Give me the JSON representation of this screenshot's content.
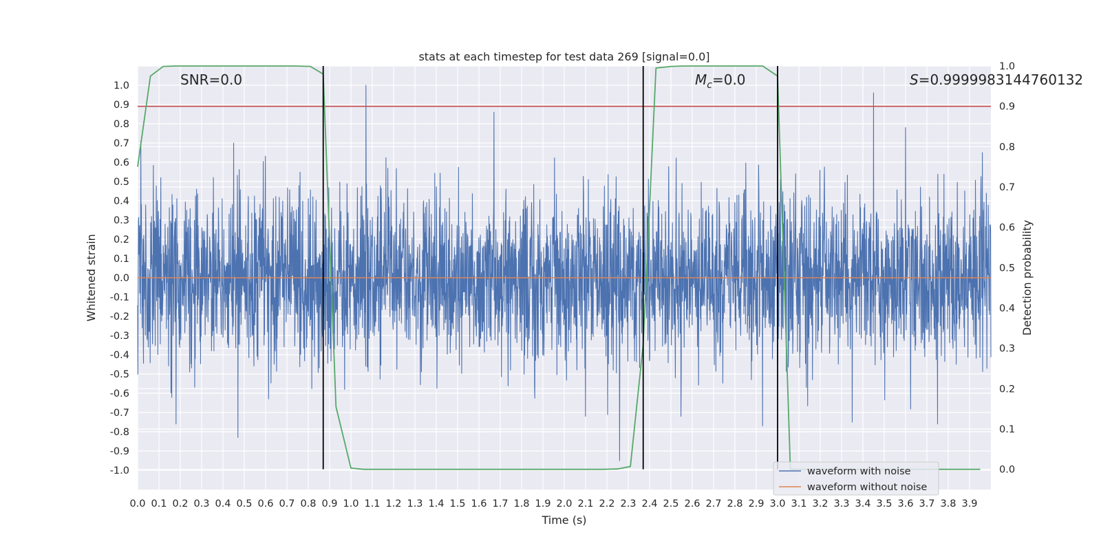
{
  "chart_data": {
    "type": "line",
    "title": "stats at each timestep for test data 269 [signal=0.0]",
    "xlabel": "Time (s)",
    "ylabel": "Whitened strain",
    "y2label": "Detection probability",
    "xlim": [
      0.0,
      4.0
    ],
    "ylim": [
      -1.1,
      1.1
    ],
    "y2lim": [
      -0.05,
      1.0
    ],
    "x_ticks": [
      "0.0",
      "0.1",
      "0.2",
      "0.3",
      "0.4",
      "0.5",
      "0.6",
      "0.7",
      "0.8",
      "0.9",
      "1.0",
      "1.1",
      "1.2",
      "1.3",
      "1.4",
      "1.5",
      "1.6",
      "1.7",
      "1.8",
      "1.9",
      "2.0",
      "2.1",
      "2.2",
      "2.3",
      "2.4",
      "2.5",
      "2.6",
      "2.7",
      "2.8",
      "2.9",
      "3.0",
      "3.1",
      "3.2",
      "3.3",
      "3.4",
      "3.5",
      "3.6",
      "3.7",
      "3.8",
      "3.9"
    ],
    "y_ticks": [
      "1.0",
      "0.9",
      "0.8",
      "0.7",
      "0.6",
      "0.5",
      "0.4",
      "0.3",
      "0.2",
      "0.1",
      "0.0",
      "-0.1",
      "-0.2",
      "-0.3",
      "-0.4",
      "-0.5",
      "-0.6",
      "-0.7",
      "-0.8",
      "-0.9",
      "-1.0"
    ],
    "y2_ticks": [
      "1.0",
      "0.9",
      "0.8",
      "0.7",
      "0.6",
      "0.5",
      "0.4",
      "0.3",
      "0.2",
      "0.1",
      "0.0"
    ],
    "grid": true,
    "legend_placement": "lower right",
    "annotations": {
      "snr": "SNR=0.0",
      "mc_symbol": "M",
      "mc_sub": "c",
      "mc_value": "=0.0",
      "s_symbol": "S",
      "s_value": "=0.9999983144760132"
    },
    "series": [
      {
        "name": "waveform with noise",
        "color": "#4c72b0",
        "kind": "noise",
        "amplitude_typical": 0.4,
        "peaks": [
          {
            "x": 0.015,
            "y": 0.71
          },
          {
            "x": 0.45,
            "y": 0.7
          },
          {
            "x": 0.47,
            "y": -0.83
          },
          {
            "x": 0.18,
            "y": -0.76
          },
          {
            "x": 1.07,
            "y": 1.0
          },
          {
            "x": 1.67,
            "y": 0.86
          },
          {
            "x": 2.26,
            "y": -0.95
          },
          {
            "x": 2.1,
            "y": -0.72
          },
          {
            "x": 3.45,
            "y": 0.96
          },
          {
            "x": 3.35,
            "y": -0.75
          },
          {
            "x": 3.75,
            "y": -0.76
          },
          {
            "x": 2.93,
            "y": -0.77
          },
          {
            "x": 3.6,
            "y": 0.78
          },
          {
            "x": 3.96,
            "y": 0.65
          }
        ]
      },
      {
        "name": "waveform without noise",
        "color": "#dd8452",
        "kind": "flat",
        "y": 0.0
      },
      {
        "name": "",
        "axis": "right",
        "color": "#55a868",
        "x": [
          0.0,
          0.06,
          0.12,
          0.18,
          0.25,
          0.31,
          0.37,
          0.43,
          0.5,
          0.56,
          0.62,
          0.68,
          0.74,
          0.81,
          0.87,
          0.93,
          1.0,
          1.06,
          1.12,
          1.18,
          1.25,
          1.5,
          1.75,
          2.0,
          2.18,
          2.25,
          2.31,
          2.37,
          2.43,
          2.5,
          2.56,
          2.62,
          2.68,
          2.75,
          2.81,
          2.87,
          2.93,
          3.0,
          3.06,
          3.12,
          3.18,
          3.25,
          3.5,
          3.75,
          3.95
        ],
        "y": [
          0.75,
          0.975,
          0.999,
          1.0,
          1.0,
          1.0,
          1.0,
          1.0,
          1.0,
          1.0,
          1.0,
          1.0,
          1.0,
          0.999,
          0.98,
          0.155,
          0.003,
          0.0,
          0.0,
          0.0,
          0.0,
          0.0,
          0.0,
          0.0,
          0.0,
          0.001,
          0.007,
          0.31,
          0.995,
          0.999,
          1.0,
          1.0,
          1.0,
          1.0,
          1.0,
          1.0,
          1.0,
          0.975,
          0.0,
          0.0,
          0.0,
          0.0,
          0.0,
          0.0,
          0.0
        ]
      }
    ],
    "hlines": [
      {
        "axis": "right",
        "y": 0.9,
        "color": "#c44e52"
      }
    ],
    "vlines": [
      {
        "x": 0.87,
        "color": "#000000"
      },
      {
        "x": 2.37,
        "color": "#000000"
      },
      {
        "x": 3.0,
        "color": "#000000"
      }
    ],
    "colors": {
      "plot_bg": "#eaeaf2",
      "grid": "#ffffff",
      "noise": "#4c72b0",
      "clean": "#dd8452",
      "prob": "#55a868",
      "threshold": "#c44e52"
    }
  }
}
